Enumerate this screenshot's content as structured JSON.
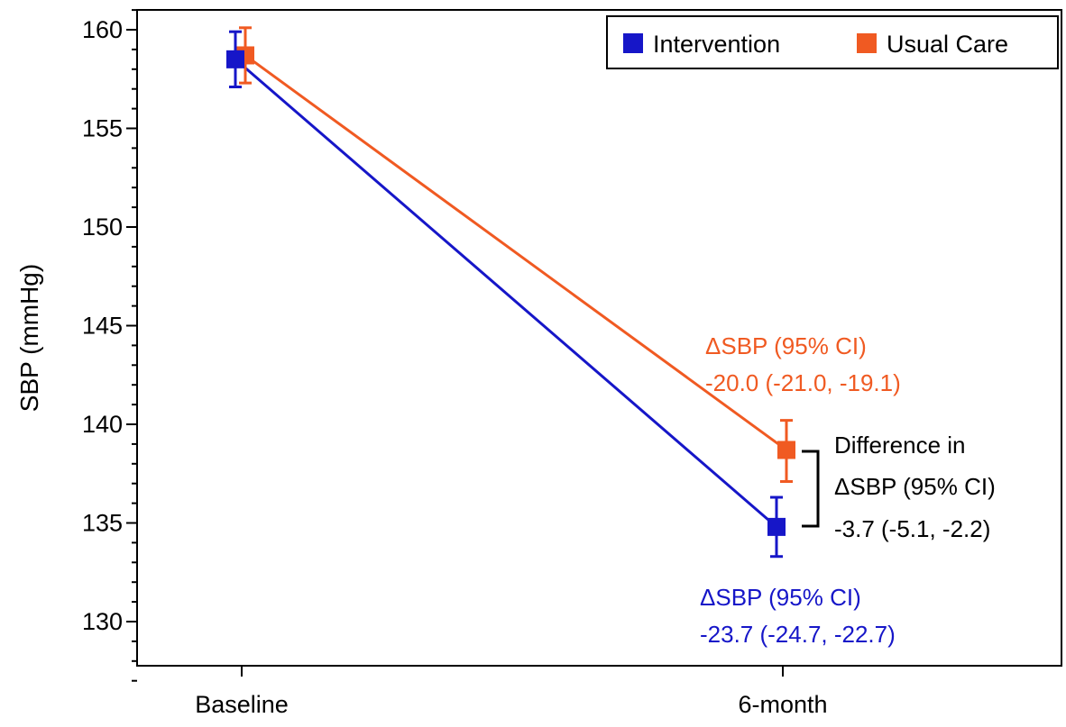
{
  "chart_data": {
    "type": "line",
    "title": "",
    "xlabel": "",
    "ylabel": "SBP (mmHg)",
    "categories": [
      "Baseline",
      "6-month"
    ],
    "ylim": [
      127,
      161.5
    ],
    "yticks": [
      130,
      135,
      140,
      145,
      150,
      155,
      160
    ],
    "grid": false,
    "legend_position": "top-right",
    "series": [
      {
        "name": "Intervention",
        "color": "#1616C8",
        "values": [
          158.5,
          134.8
        ],
        "ci_low": [
          157.1,
          133.3
        ],
        "ci_high": [
          159.9,
          136.3
        ]
      },
      {
        "name": "Usual Care",
        "color": "#F05A22",
        "values": [
          158.7,
          138.7
        ],
        "ci_low": [
          157.3,
          137.1
        ],
        "ci_high": [
          160.1,
          140.2
        ]
      }
    ],
    "annotations": {
      "usual_care_change": [
        "ΔSBP (95% CI)",
        "-20.0 (-21.0, -19.1)"
      ],
      "difference": [
        "Difference in",
        "ΔSBP (95% CI)",
        "-3.7 (-5.1, -2.2)"
      ],
      "intervention_change": [
        "ΔSBP (95% CI)",
        "-23.7 (-24.7, -22.7)"
      ]
    }
  }
}
